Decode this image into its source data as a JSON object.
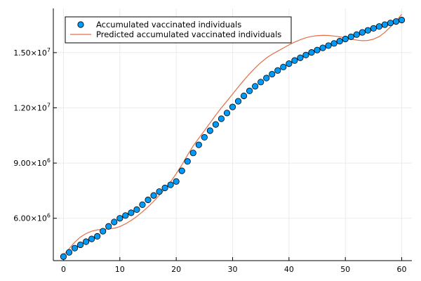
{
  "chart_data": {
    "type": "scatter",
    "title": "",
    "xlabel": "",
    "ylabel": "",
    "xlim": [
      -1.8,
      61.8
    ],
    "ylim": [
      3700000,
      17400000
    ],
    "grid": true,
    "legend_position": "top-left",
    "x_ticks": [
      0,
      10,
      20,
      30,
      40,
      50,
      60
    ],
    "x_tick_labels": [
      "0",
      "10",
      "20",
      "30",
      "40",
      "50",
      "60"
    ],
    "y_ticks": [
      6000000,
      9000000,
      12000000,
      15000000
    ],
    "y_tick_labels": [
      {
        "mantissa": "6.00×10",
        "exponent": "6"
      },
      {
        "mantissa": "9.00×10",
        "exponent": "6"
      },
      {
        "mantissa": "1.20×10",
        "exponent": "7"
      },
      {
        "mantissa": "1.50×10",
        "exponent": "7"
      }
    ],
    "colors": {
      "observed": "#009af9",
      "predicted": "#e26f46",
      "marker_edge": "#000000"
    },
    "series": [
      {
        "name": "Accumulated vaccinated individuals",
        "kind": "scatter",
        "x": [
          0,
          1,
          2,
          3,
          4,
          5,
          6,
          7,
          8,
          9,
          10,
          11,
          12,
          13,
          14,
          15,
          16,
          17,
          18,
          19,
          20,
          21,
          22,
          23,
          24,
          25,
          26,
          27,
          28,
          29,
          30,
          31,
          32,
          33,
          34,
          35,
          36,
          37,
          38,
          39,
          40,
          41,
          42,
          43,
          44,
          45,
          46,
          47,
          48,
          49,
          50,
          51,
          52,
          53,
          54,
          55,
          56,
          57,
          58,
          59,
          60
        ],
        "y": [
          3920000,
          4150000,
          4380000,
          4560000,
          4730000,
          4880000,
          5020000,
          5300000,
          5560000,
          5800000,
          6000000,
          6150000,
          6300000,
          6470000,
          6740000,
          7000000,
          7240000,
          7450000,
          7650000,
          7820000,
          8000000,
          8580000,
          9090000,
          9550000,
          9990000,
          10400000,
          10760000,
          11100000,
          11410000,
          11720000,
          12050000,
          12360000,
          12650000,
          12920000,
          13170000,
          13400000,
          13620000,
          13830000,
          14030000,
          14220000,
          14400000,
          14570000,
          14720000,
          14870000,
          15010000,
          15140000,
          15260000,
          15380000,
          15500000,
          15620000,
          15740000,
          15860000,
          15980000,
          16100000,
          16210000,
          16320000,
          16420000,
          16520000,
          16610000,
          16690000,
          16770000
        ]
      },
      {
        "name": "Predicted accumulated vaccinated individuals",
        "kind": "line",
        "x": [
          0,
          1,
          2,
          3,
          4,
          5,
          6,
          7,
          8,
          9,
          10,
          11,
          12,
          13,
          14,
          15,
          16,
          17,
          18,
          19,
          20,
          21,
          22,
          23,
          24,
          25,
          26,
          27,
          28,
          29,
          30,
          31,
          32,
          33,
          34,
          35,
          36,
          37,
          38,
          39,
          40,
          41,
          42,
          43,
          44,
          45,
          46,
          47,
          48,
          49,
          50,
          51,
          52,
          53,
          54,
          55,
          56,
          57,
          58,
          59,
          60
        ],
        "y": [
          4000000,
          4350000,
          4700000,
          4980000,
          5170000,
          5300000,
          5370000,
          5400000,
          5420000,
          5460000,
          5550000,
          5700000,
          5880000,
          6100000,
          6350000,
          6620000,
          6920000,
          7250000,
          7600000,
          7980000,
          8420000,
          8900000,
          9430000,
          9930000,
          10350000,
          10760000,
          11180000,
          11600000,
          12000000,
          12370000,
          12750000,
          13130000,
          13500000,
          13850000,
          14170000,
          14460000,
          14710000,
          14910000,
          15080000,
          15250000,
          15420000,
          15570000,
          15700000,
          15810000,
          15880000,
          15920000,
          15940000,
          15930000,
          15900000,
          15860000,
          15800000,
          15740000,
          15680000,
          15650000,
          15660000,
          15730000,
          15870000,
          16100000,
          16400000,
          16720000,
          17080000
        ]
      }
    ]
  }
}
